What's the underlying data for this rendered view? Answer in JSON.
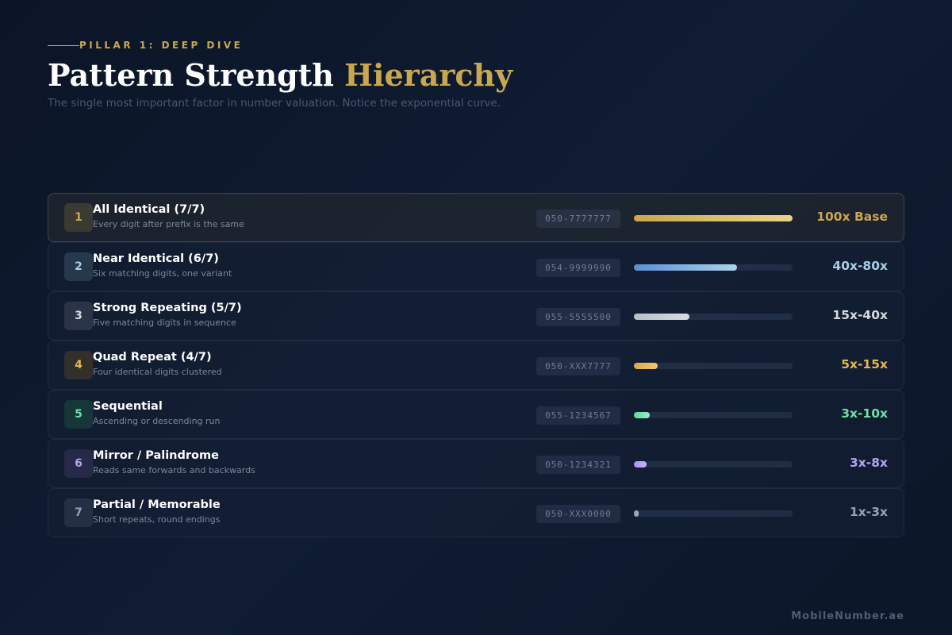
{
  "header": {
    "eyebrow": "PILLAR 1: DEEP DIVE",
    "title_main": "Pattern Strength",
    "title_accent": "Hierarchy",
    "subtitle": "The single most important factor in number valuation. Notice the exponential curve."
  },
  "tiers": [
    {
      "rank": "1",
      "name": "All Identical (7/7)",
      "desc": "Every digit after prefix is the same",
      "number": "050-7777777",
      "multiplier": "100x Base",
      "strength": 1.0,
      "color": "#c9a74f",
      "bar": [
        "#c9a74f",
        "#e8d48a"
      ],
      "badge_bg": "#3a3a33"
    },
    {
      "rank": "2",
      "name": "Near Identical (6/7)",
      "desc": "Six matching digits, one variant",
      "number": "054-9999990",
      "multiplier": "40x-80x",
      "strength": 0.65,
      "color": "#a9cde6",
      "bar": [
        "#5b8fd8",
        "#a8d4e8"
      ],
      "badge_bg": "#27384d"
    },
    {
      "rank": "3",
      "name": "Strong Repeating (5/7)",
      "desc": "Five matching digits in sequence",
      "number": "055-5555500",
      "multiplier": "15x-40x",
      "strength": 0.35,
      "color": "#d6d9de",
      "bar": [
        "#b8bec8",
        "#d8dbe0"
      ],
      "badge_bg": "#2a3446"
    },
    {
      "rank": "4",
      "name": "Quad Repeat (4/7)",
      "desc": "Four identical digits clustered",
      "number": "050-XXX7777",
      "multiplier": "5x-15x",
      "strength": 0.15,
      "color": "#e6b655",
      "bar": [
        "#d9a94a",
        "#f0c870"
      ],
      "badge_bg": "#33302c"
    },
    {
      "rank": "5",
      "name": "Sequential",
      "desc": "Ascending or descending run",
      "number": "055-1234567",
      "multiplier": "3x-10x",
      "strength": 0.1,
      "color": "#6fe0a8",
      "bar": [
        "#5fd8a0",
        "#8ef0c0"
      ],
      "badge_bg": "#16363a"
    },
    {
      "rank": "6",
      "name": "Mirror / Palindrome",
      "desc": "Reads same forwards and backwards",
      "number": "050-1234321",
      "multiplier": "3x-8x",
      "strength": 0.08,
      "color": "#b7a2f0",
      "bar": [
        "#a890ea",
        "#c8b8f4"
      ],
      "badge_bg": "#262a48"
    },
    {
      "rank": "7",
      "name": "Partial / Memorable",
      "desc": "Short repeats, round endings",
      "number": "050-XXX0000",
      "multiplier": "1x-3x",
      "strength": 0.03,
      "color": "#95a1b4",
      "bar": [
        "#8a96a8",
        "#aab4c4"
      ],
      "badge_bg": "#232f42"
    }
  ],
  "footer": {
    "brand": "MobileNumber.ae"
  }
}
